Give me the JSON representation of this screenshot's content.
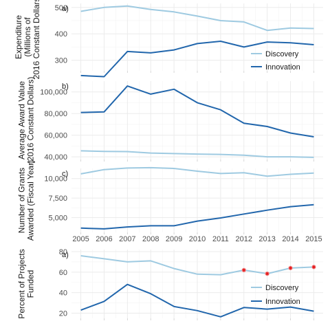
{
  "colors": {
    "discovery": "#9ecae1",
    "innovation": "#2166ac",
    "highlight": "#e31a1c",
    "grid": "#ebebeb",
    "text": "#4d4d4d"
  },
  "chart_data": [
    {
      "type": "line",
      "panel_label": "a)",
      "ylabel": [
        "Expenditure",
        "(Millions of",
        "2016 Constant Dollars)"
      ],
      "x": [
        2005,
        2006,
        2007,
        2008,
        2009,
        2010,
        2011,
        2012,
        2013,
        2014,
        2015
      ],
      "ylim": [
        260,
        515
      ],
      "yticks": [
        300,
        400,
        500
      ],
      "ytick_labels": [
        "300",
        "400",
        "500"
      ],
      "grid": true,
      "legend": "bottom-right",
      "series": [
        {
          "name": "Discovery",
          "color_key": "discovery",
          "values": [
            485,
            500,
            505,
            492,
            483,
            467,
            450,
            445,
            413,
            422,
            420
          ]
        },
        {
          "name": "Innovation",
          "color_key": "innovation",
          "values": [
            242,
            238,
            333,
            328,
            339,
            363,
            372,
            350,
            369,
            366,
            359
          ]
        }
      ]
    },
    {
      "type": "line",
      "panel_label": "b)",
      "ylabel": [
        "Average Award Value",
        "(2016 Constant Dollars)"
      ],
      "x": [
        2005,
        2006,
        2007,
        2008,
        2009,
        2010,
        2011,
        2012,
        2013,
        2014,
        2015
      ],
      "ylim": [
        37500,
        110000
      ],
      "yticks": [
        40000,
        60000,
        80000,
        100000
      ],
      "ytick_labels": [
        "40,000",
        "60,000",
        "80,000",
        "100,000"
      ],
      "grid": true,
      "series": [
        {
          "name": "Discovery",
          "color_key": "discovery",
          "values": [
            45500,
            45000,
            44800,
            43500,
            43000,
            42500,
            42200,
            41500,
            40000,
            40000,
            39500
          ]
        },
        {
          "name": "Innovation",
          "color_key": "innovation",
          "values": [
            81000,
            81500,
            105500,
            98000,
            102500,
            90000,
            83500,
            71000,
            68000,
            62000,
            58500
          ]
        }
      ]
    },
    {
      "type": "line",
      "panel_label": "c)",
      "ylabel": [
        "Number of Grants",
        "Awarded (Fiscal Year)"
      ],
      "x": [
        2005,
        2006,
        2007,
        2008,
        2009,
        2010,
        2011,
        2012,
        2013,
        2014,
        2015
      ],
      "xtick_labels": [
        "2005",
        "2006",
        "2007",
        "2008",
        "2009",
        "2010",
        "2011",
        "2012",
        "2013",
        "2014",
        "2015"
      ],
      "ylim": [
        3100,
        11300
      ],
      "yticks": [
        5000,
        7500,
        10000
      ],
      "ytick_labels": [
        "5,000",
        "7,500",
        "10,000"
      ],
      "grid": true,
      "series": [
        {
          "name": "Discovery",
          "color_key": "discovery",
          "values": [
            10600,
            11150,
            11350,
            11400,
            11300,
            10950,
            10650,
            10750,
            10300,
            10550,
            10700
          ]
        },
        {
          "name": "Innovation",
          "color_key": "innovation",
          "values": [
            3650,
            3550,
            3800,
            3950,
            3950,
            4550,
            4950,
            5450,
            5950,
            6400,
            6650
          ]
        }
      ]
    },
    {
      "type": "line",
      "panel_label": "a)",
      "ylabel": [
        "Percent of Projects",
        "Funded"
      ],
      "x": [
        2005,
        2006,
        2007,
        2008,
        2009,
        2010,
        2011,
        2012,
        2013,
        2014,
        2015
      ],
      "ylim": [
        15,
        82
      ],
      "yticks": [
        20,
        40,
        60,
        80
      ],
      "ytick_labels": [
        "20",
        "40",
        "60",
        "80"
      ],
      "grid": true,
      "legend": "bottom-right",
      "highlight_points": {
        "series_index": 0,
        "x": [
          2012,
          2013,
          2014,
          2015
        ]
      },
      "series": [
        {
          "name": "Discovery",
          "color_key": "discovery",
          "values": [
            76,
            73,
            70,
            71,
            63.5,
            58,
            57.5,
            62,
            58.5,
            64,
            65
          ]
        },
        {
          "name": "Innovation",
          "color_key": "innovation",
          "values": [
            23,
            31.5,
            48,
            39,
            26.5,
            22.5,
            16.5,
            25.5,
            24,
            26,
            22
          ]
        }
      ]
    }
  ]
}
